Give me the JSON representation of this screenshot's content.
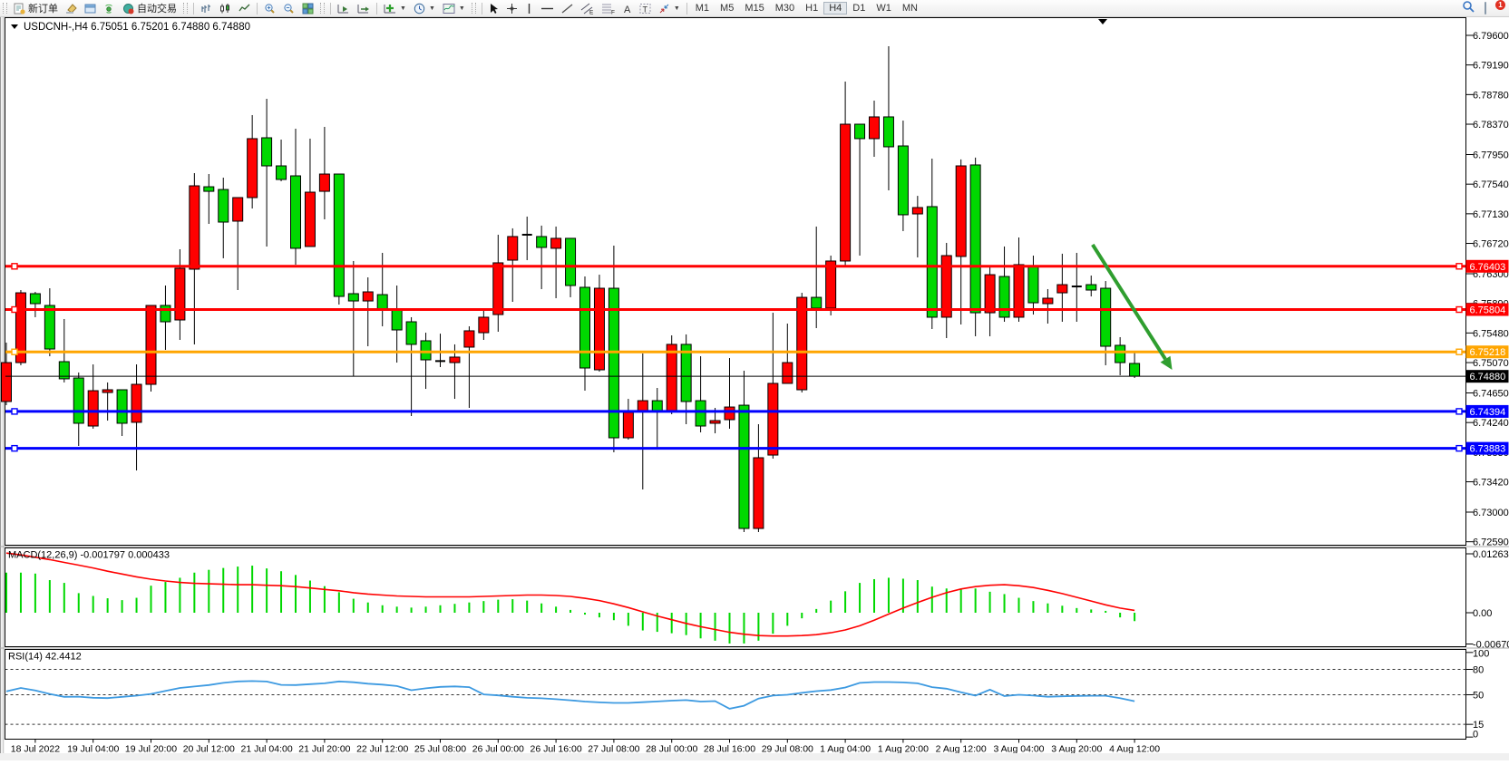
{
  "toolbar": {
    "items": [
      {
        "kind": "grip"
      },
      {
        "kind": "btn",
        "name": "new-order-button",
        "icon": "neworder",
        "label": "新订单"
      },
      {
        "kind": "btn",
        "name": "styler-button",
        "icon": "eraser"
      },
      {
        "kind": "btn",
        "name": "new-chart-button",
        "icon": "window"
      },
      {
        "kind": "btn",
        "name": "signals-button",
        "icon": "signal"
      },
      {
        "kind": "btn",
        "name": "autotrading-button",
        "icon": "autotrade",
        "label": "自动交易"
      },
      {
        "kind": "grip"
      },
      {
        "kind": "sep"
      },
      {
        "kind": "btn",
        "name": "bar-chart-button",
        "icon": "bars"
      },
      {
        "kind": "btn",
        "name": "candle-chart-button",
        "icon": "candles"
      },
      {
        "kind": "btn",
        "name": "line-chart-button",
        "icon": "linechart"
      },
      {
        "kind": "sep"
      },
      {
        "kind": "btn",
        "name": "zoom-in-button",
        "icon": "zoomin"
      },
      {
        "kind": "btn",
        "name": "zoom-out-button",
        "icon": "zoomout"
      },
      {
        "kind": "btn",
        "name": "tile-windows-button",
        "icon": "tile"
      },
      {
        "kind": "grip"
      },
      {
        "kind": "sep"
      },
      {
        "kind": "btn",
        "name": "autoscroll-button",
        "icon": "autoscroll"
      },
      {
        "kind": "btn",
        "name": "chart-shift-button",
        "icon": "shift"
      },
      {
        "kind": "sep"
      },
      {
        "kind": "btn",
        "name": "indicators-button",
        "icon": "pluschart",
        "caret": true
      },
      {
        "kind": "btn",
        "name": "periods-button",
        "icon": "clock",
        "caret": true
      },
      {
        "kind": "btn",
        "name": "templates-button",
        "icon": "template",
        "caret": true
      },
      {
        "kind": "grip"
      },
      {
        "kind": "sep"
      },
      {
        "kind": "btn",
        "name": "cursor-button",
        "icon": "cursor"
      },
      {
        "kind": "btn",
        "name": "crosshair-button",
        "icon": "cross"
      },
      {
        "kind": "btn",
        "name": "vline-button",
        "icon": "vline"
      },
      {
        "kind": "btn",
        "name": "hline-button",
        "icon": "hline"
      },
      {
        "kind": "btn",
        "name": "trendline-button",
        "icon": "trend"
      },
      {
        "kind": "btn",
        "name": "channel-button",
        "icon": "channel"
      },
      {
        "kind": "btn",
        "name": "fibonacci-button",
        "icon": "fibo"
      },
      {
        "kind": "btn",
        "name": "text-button",
        "icon": "textA"
      },
      {
        "kind": "btn",
        "name": "label-button",
        "icon": "labelT"
      },
      {
        "kind": "btn",
        "name": "arrows-button",
        "icon": "arrows",
        "caret": true
      },
      {
        "kind": "sep"
      }
    ],
    "timeframes": [
      "M1",
      "M5",
      "M15",
      "M30",
      "H1",
      "H4",
      "D1",
      "W1",
      "MN"
    ],
    "active_timeframe": "H4",
    "right": [
      {
        "name": "search-button",
        "icon": "search"
      },
      {
        "name": "chat-button",
        "icon": "chat",
        "badge": "1"
      }
    ]
  },
  "chart": {
    "title": "USDCNH-,H4",
    "quote": "6.75051 6.75201 6.74880 6.74880"
  },
  "chart_data": {
    "type": "candlestick",
    "symbol": "USDCNH-",
    "timeframe": "H4",
    "colors": {
      "bull": "#ff0000",
      "bear": "#00d800",
      "wick": "#000000",
      "macd_hist": "#00d800",
      "macd_signal": "#ff0000",
      "rsi": "#3d9ae1",
      "arrow": "#2f9e2f"
    },
    "price_axis": {
      "min": 6.7259,
      "max": 6.796,
      "ticks": [
        "6.79600",
        "6.79190",
        "6.78780",
        "6.78370",
        "6.77950",
        "6.77540",
        "6.77130",
        "6.76720",
        "6.76300",
        "6.75890",
        "6.75480",
        "6.75070",
        "6.74650",
        "6.74240",
        "6.73830",
        "6.73420",
        "6.73000",
        "6.72590"
      ]
    },
    "time_labels": [
      "18 Jul 2022",
      "19 Jul 04:00",
      "19 Jul 20:00",
      "20 Jul 12:00",
      "21 Jul 04:00",
      "21 Jul 20:00",
      "22 Jul 12:00",
      "25 Jul 08:00",
      "26 Jul 00:00",
      "26 Jul 16:00",
      "27 Jul 08:00",
      "28 Jul 00:00",
      "28 Jul 16:00",
      "29 Jul 08:00",
      "1 Aug 04:00",
      "1 Aug 20:00",
      "2 Aug 12:00",
      "3 Aug 04:00",
      "3 Aug 20:00",
      "4 Aug 12:00"
    ],
    "candles": [
      [
        6.74531,
        6.75346,
        6.7448,
        6.7507
      ],
      [
        6.7507,
        6.76074,
        6.75033,
        6.76036
      ],
      [
        6.76024,
        6.76049,
        6.75698,
        6.75886
      ],
      [
        6.75861,
        6.76099,
        6.75158,
        6.75258
      ],
      [
        6.75083,
        6.75673,
        6.74795,
        6.74845
      ],
      [
        6.74857,
        6.74933,
        6.73916,
        6.7423
      ],
      [
        6.74192,
        6.75045,
        6.74155,
        6.74681
      ],
      [
        6.74656,
        6.74795,
        6.74267,
        6.74694
      ],
      [
        6.74694,
        6.74694,
        6.74054,
        6.7423
      ],
      [
        6.74243,
        6.75045,
        6.73577,
        6.74769
      ],
      [
        6.74769,
        6.75861,
        6.74669,
        6.75861
      ],
      [
        6.75861,
        6.76137,
        6.75246,
        6.75635
      ],
      [
        6.7566,
        6.76639,
        6.75384,
        6.76375
      ],
      [
        6.76363,
        6.77693,
        6.75322,
        6.77517
      ],
      [
        6.77504,
        6.7768,
        6.7699,
        6.77441
      ],
      [
        6.77466,
        6.7763,
        6.76514,
        6.77015
      ],
      [
        6.77028,
        6.77354,
        6.76074,
        6.77354
      ],
      [
        6.77354,
        6.78496,
        6.77203,
        6.7817
      ],
      [
        6.78182,
        6.78721,
        6.76677,
        6.77793
      ],
      [
        6.77793,
        6.78157,
        6.7758,
        6.77605
      ],
      [
        6.77655,
        6.78308,
        6.76426,
        6.76652
      ],
      [
        6.76677,
        6.7817,
        6.76677,
        6.77429
      ],
      [
        6.77441,
        6.78333,
        6.77053,
        6.7768
      ],
      [
        6.7768,
        6.7768,
        6.75873,
        6.75986
      ],
      [
        6.76024,
        6.76476,
        6.74882,
        6.75923
      ],
      [
        6.75923,
        6.7625,
        6.75296,
        6.76049
      ],
      [
        6.76011,
        6.76589,
        6.75572,
        6.7581
      ],
      [
        6.7581,
        6.76137,
        6.7507,
        6.75522
      ],
      [
        6.75635,
        6.75698,
        6.7433,
        6.75322
      ],
      [
        6.75372,
        6.75484,
        6.74706,
        6.75108
      ],
      [
        6.75091,
        6.75471,
        6.75008,
        6.75091
      ],
      [
        6.7507,
        6.75322,
        6.74568,
        6.75146
      ],
      [
        6.75284,
        6.75572,
        6.74443,
        6.7551
      ],
      [
        6.75484,
        6.75786,
        6.75384,
        6.75698
      ],
      [
        6.75735,
        6.7684,
        6.75497,
        6.76451
      ],
      [
        6.76488,
        6.76928,
        6.75911,
        6.76815
      ],
      [
        6.7684,
        6.77091,
        6.76488,
        6.7684
      ],
      [
        6.76815,
        6.76966,
        6.76087,
        6.76664
      ],
      [
        6.76652,
        6.76953,
        6.75961,
        6.7679
      ],
      [
        6.7679,
        6.7679,
        6.75974,
        6.76137
      ],
      [
        6.76112,
        6.76262,
        6.74681,
        6.74995
      ],
      [
        6.7497,
        6.76287,
        6.74945,
        6.76099
      ],
      [
        6.76099,
        6.76689,
        6.73828,
        6.74029
      ],
      [
        6.74029,
        6.74568,
        6.74004,
        6.7438
      ],
      [
        6.74405,
        6.75196,
        6.73314,
        6.74543
      ],
      [
        6.74543,
        6.74719,
        6.73865,
        6.74405
      ],
      [
        6.74405,
        6.75447,
        6.74355,
        6.75322
      ],
      [
        6.75322,
        6.7546,
        6.74217,
        6.74531
      ],
      [
        6.74543,
        6.75158,
        6.74104,
        6.74192
      ],
      [
        6.7423,
        6.74443,
        6.74091,
        6.74267
      ],
      [
        6.7428,
        6.75133,
        6.74155,
        6.74455
      ],
      [
        6.7448,
        6.74958,
        6.72724,
        6.72774
      ],
      [
        6.72774,
        6.74217,
        6.72724,
        6.73753
      ],
      [
        6.7379,
        6.75761,
        6.73741,
        6.74782
      ],
      [
        6.74782,
        6.7561,
        6.74782,
        6.7507
      ],
      [
        6.74694,
        6.76036,
        6.74656,
        6.75973
      ],
      [
        6.75973,
        6.76953,
        6.75547,
        6.75823
      ],
      [
        6.75823,
        6.76551,
        6.75723,
        6.76476
      ],
      [
        6.76476,
        6.7896,
        6.764,
        6.7837
      ],
      [
        6.7837,
        6.7837,
        6.76551,
        6.7817
      ],
      [
        6.7817,
        6.78697,
        6.77919,
        6.78471
      ],
      [
        6.78471,
        6.7945,
        6.77455,
        6.78057
      ],
      [
        6.78069,
        6.7842,
        6.7689,
        6.77116
      ],
      [
        6.77128,
        6.77378,
        6.76526,
        6.77216
      ],
      [
        6.77229,
        6.77894,
        6.75535,
        6.75698
      ],
      [
        6.75698,
        6.76727,
        6.75409,
        6.76551
      ],
      [
        6.76539,
        6.77882,
        6.75598,
        6.77793
      ],
      [
        6.77806,
        6.77907,
        6.75434,
        6.7576
      ],
      [
        6.7576,
        6.76413,
        6.75434,
        6.76287
      ],
      [
        6.76262,
        6.76677,
        6.75635,
        6.75698
      ],
      [
        6.75698,
        6.76802,
        6.75635,
        6.76426
      ],
      [
        6.76413,
        6.76551,
        6.75735,
        6.75898
      ],
      [
        6.75886,
        6.76087,
        6.7561,
        6.75961
      ],
      [
        6.76036,
        6.76577,
        6.75635,
        6.76149
      ],
      [
        6.76124,
        6.76589,
        6.75635,
        6.76124
      ],
      [
        6.76149,
        6.76275,
        6.75986,
        6.76074
      ],
      [
        6.76099,
        6.76199,
        6.75033,
        6.75296
      ],
      [
        6.75309,
        6.75422,
        6.74895,
        6.7507
      ],
      [
        6.75058,
        6.75208,
        6.74857,
        6.74882
      ]
    ],
    "hlines": [
      {
        "price": 6.76403,
        "label": "6.76403",
        "color": "#ff0000",
        "width": 3,
        "markers": true
      },
      {
        "price": 6.75804,
        "label": "6.75804",
        "color": "#ff0000",
        "width": 3,
        "markers": true
      },
      {
        "price": 6.75218,
        "label": "6.75218",
        "color": "#ffa500",
        "width": 3,
        "markers": true
      },
      {
        "price": 6.7488,
        "label": "6.74880",
        "color": "#000000",
        "width": 1,
        "markers": false
      },
      {
        "price": 6.74394,
        "label": "6.74394",
        "color": "#0000ff",
        "width": 3,
        "markers": true
      },
      {
        "price": 6.73883,
        "label": "6.73883",
        "color": "#0000ff",
        "width": 3,
        "markers": true
      }
    ],
    "arrow": {
      "bar1": 75.1,
      "price1": 6.76702,
      "bar2": 80.6,
      "price2": 6.7497
    },
    "macd": {
      "label": "MACD(12,26,9)",
      "value": "-0.001797",
      "signal_value": "0.000433",
      "scale_labels": [
        "0.012637",
        "0.00",
        "-0.006709"
      ],
      "scale_values": [
        0.012637,
        0,
        -0.006709
      ],
      "hist": [
        0.0086,
        0.0086,
        0.0084,
        0.007,
        0.0064,
        0.0042,
        0.0036,
        0.0031,
        0.0027,
        0.0032,
        0.0058,
        0.0066,
        0.0075,
        0.0086,
        0.0092,
        0.0096,
        0.0099,
        0.0101,
        0.0095,
        0.0089,
        0.0081,
        0.0069,
        0.0057,
        0.0044,
        0.003,
        0.0022,
        0.0016,
        0.0013,
        0.0011,
        0.0013,
        0.0016,
        0.0019,
        0.0022,
        0.0025,
        0.0028,
        0.0029,
        0.0026,
        0.002,
        0.0013,
        0.0006,
        -0.0004,
        -0.001,
        -0.0016,
        -0.0028,
        -0.0038,
        -0.0041,
        -0.0044,
        -0.0048,
        -0.0055,
        -0.006,
        -0.0066,
        -0.0066,
        -0.006,
        -0.0045,
        -0.0028,
        -0.0012,
        0.0008,
        0.0026,
        0.0046,
        0.0064,
        0.0072,
        0.0075,
        0.0073,
        0.007,
        0.0056,
        0.0052,
        0.005,
        0.0052,
        0.0045,
        0.004,
        0.0032,
        0.0025,
        0.002,
        0.0015,
        0.001,
        0.0007,
        0.0004,
        -0.001,
        -0.0018
      ],
      "signal": [
        0.0128,
        0.0124,
        0.0119,
        0.0114,
        0.0108,
        0.0102,
        0.0096,
        0.0089,
        0.0083,
        0.0077,
        0.0072,
        0.0068,
        0.0065,
        0.0063,
        0.0062,
        0.0061,
        0.006,
        0.006,
        0.0059,
        0.0058,
        0.0056,
        0.0053,
        0.005,
        0.0047,
        0.0043,
        0.004,
        0.0038,
        0.0036,
        0.0035,
        0.0034,
        0.0034,
        0.0034,
        0.0034,
        0.0035,
        0.0036,
        0.0037,
        0.0038,
        0.0038,
        0.0037,
        0.0035,
        0.0031,
        0.0026,
        0.0019,
        0.0011,
        0.0002,
        -0.0007,
        -0.0015,
        -0.0023,
        -0.003,
        -0.0036,
        -0.0042,
        -0.0046,
        -0.0049,
        -0.005,
        -0.005,
        -0.0049,
        -0.0047,
        -0.0043,
        -0.0037,
        -0.0028,
        -0.0016,
        -0.0003,
        0.001,
        0.0022,
        0.0033,
        0.0043,
        0.0051,
        0.0056,
        0.0059,
        0.006,
        0.0058,
        0.0054,
        0.0048,
        0.0041,
        0.0033,
        0.0025,
        0.0017,
        0.001,
        0.0005
      ]
    },
    "rsi": {
      "label": "RSI(14)",
      "value": "42.4412",
      "levels": [
        80,
        50,
        15
      ],
      "scale_labels": [
        "100",
        "80",
        "50",
        "15",
        "0"
      ],
      "values": [
        54,
        58,
        55,
        51,
        47.5,
        47.7,
        46.5,
        46,
        47.5,
        48.9,
        51,
        54.5,
        58,
        59.7,
        61.5,
        64,
        65.8,
        66.2,
        65.6,
        61.7,
        61.5,
        62.5,
        63.5,
        65.7,
        64.8,
        63.1,
        62,
        60.3,
        55.4,
        57.6,
        59.3,
        59.9,
        59,
        50.4,
        49.2,
        47.6,
        46.4,
        45.8,
        44.7,
        43.5,
        42,
        41,
        40.4,
        40.4,
        41.2,
        42.1,
        43,
        43.7,
        42,
        42.5,
        33.5,
        37,
        45.5,
        49,
        50,
        52.3,
        54.3,
        55.6,
        58.6,
        64,
        65,
        65,
        64.6,
        63.5,
        59,
        57.2,
        53,
        49,
        56,
        48.5,
        50,
        49,
        47.6,
        48.2,
        48.6,
        48.8,
        48.8,
        46,
        42.44
      ]
    }
  }
}
